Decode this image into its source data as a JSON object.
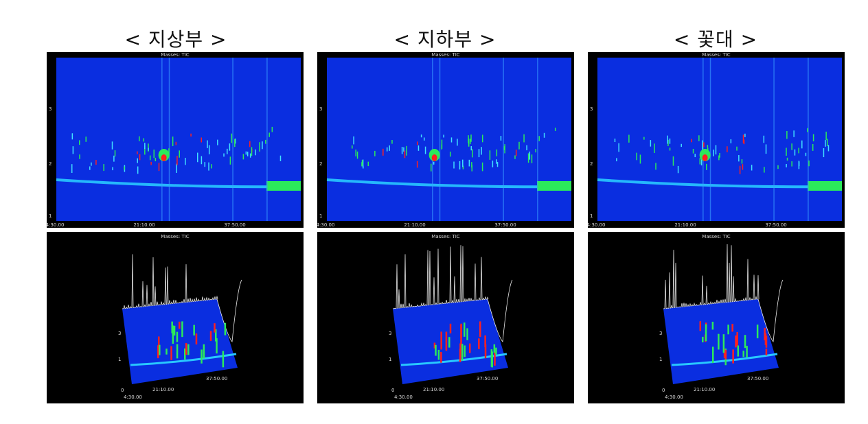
{
  "columns": [
    {
      "title": "< 지상부 >"
    },
    {
      "title": "< 지하부 >"
    },
    {
      "title": "< 꽃대 >"
    }
  ],
  "chart_data": [
    {
      "type": "heatmap",
      "title": "Masses: TIC",
      "x_ticks": [
        "4:30.00",
        "21:10.00",
        "37:50.00"
      ],
      "y_ticks": [
        "3",
        "2",
        "1",
        "0"
      ],
      "view": "2d"
    },
    {
      "type": "heatmap",
      "title": "Masses: TIC",
      "x_ticks": [
        "4:30.00",
        "21:10.00",
        "37:50.00"
      ],
      "y_ticks": [
        "3",
        "2",
        "1",
        "0"
      ],
      "view": "2d"
    },
    {
      "type": "heatmap",
      "title": "Masses: TIC",
      "x_ticks": [
        "4:30.00",
        "21:10.00",
        "37:50.00"
      ],
      "y_ticks": [
        "3",
        "2",
        "1",
        "0"
      ],
      "view": "2d"
    },
    {
      "type": "heatmap",
      "title": "Masses: TIC",
      "x_ticks": [
        "4:30.00",
        "21:10.00",
        "37:50.00"
      ],
      "z_ticks": [
        "3",
        "2",
        "1",
        "0"
      ],
      "view": "3d"
    },
    {
      "type": "heatmap",
      "title": "Masses: TIC",
      "x_ticks": [
        "4:30.00",
        "21:10.00",
        "37:50.00"
      ],
      "z_ticks": [
        "3",
        "2",
        "1",
        "0"
      ],
      "view": "3d"
    },
    {
      "type": "heatmap",
      "title": "Masses: TIC",
      "x_ticks": [
        "4:30.00",
        "21:10.00",
        "37:50.00"
      ],
      "z_ticks": [
        "3",
        "2",
        "1",
        "0"
      ],
      "view": "3d"
    }
  ]
}
